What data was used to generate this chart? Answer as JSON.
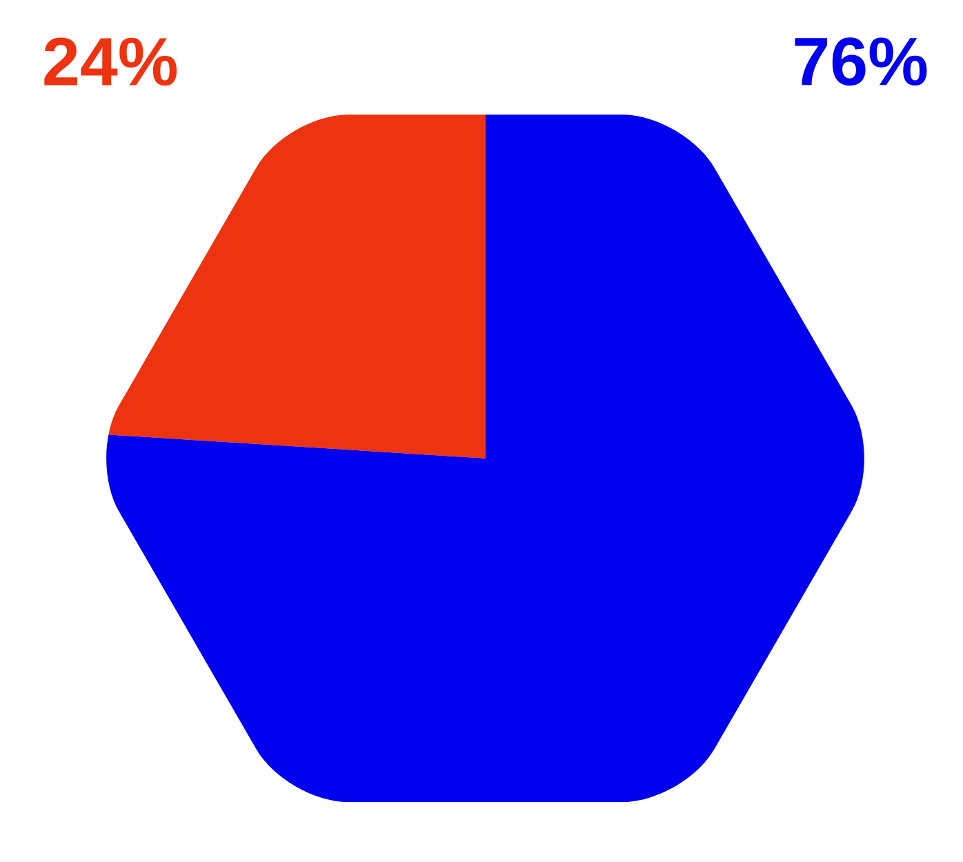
{
  "chart_data": {
    "type": "pie",
    "categories": [
      null,
      null
    ],
    "values": [
      24,
      76
    ],
    "colors": [
      "#ee3311",
      "#0000ee"
    ],
    "value_labels": [
      "24%",
      "76%"
    ]
  }
}
